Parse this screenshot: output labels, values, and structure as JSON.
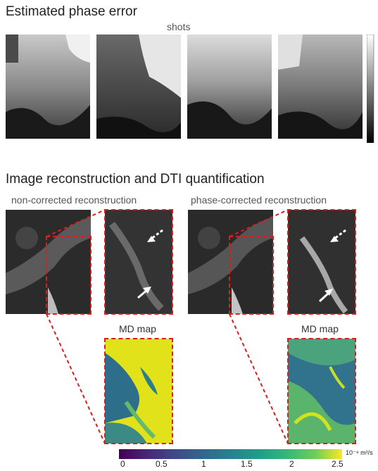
{
  "section1": {
    "title": "Estimated phase error",
    "shots_label": "shots"
  },
  "section2": {
    "title": "Image reconstruction and DTI quantification",
    "left_label": "non-corrected reconstruction",
    "right_label": "phase-corrected reconstruction",
    "md_label_left": "MD map",
    "md_label_right": "MD map"
  },
  "colorbar": {
    "ticks": [
      "0",
      "0.5",
      "1",
      "1.5",
      "2",
      "2.5"
    ],
    "unit": "10⁻⁹ m²/s",
    "colormap": "viridis",
    "min": 0,
    "max": 2.5
  },
  "colors": {
    "dash": "#d62020"
  }
}
